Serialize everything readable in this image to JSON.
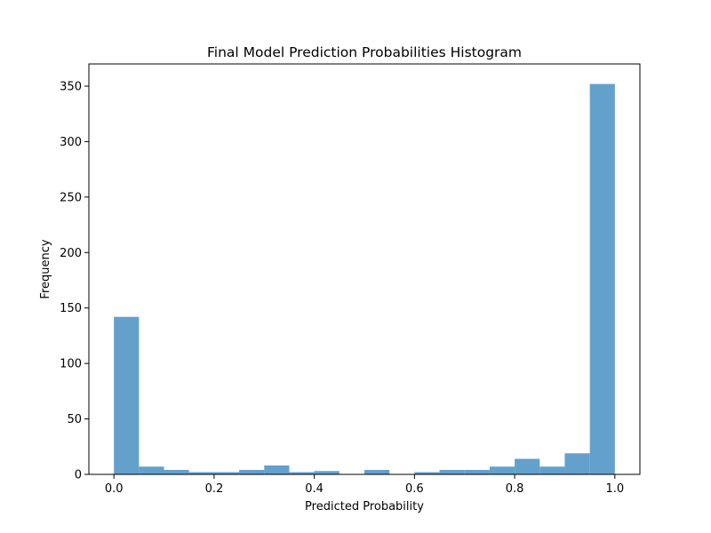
{
  "chart_data": {
    "type": "bar",
    "subtype": "histogram",
    "title": "Final Model Prediction Probabilities Histogram",
    "xlabel": "Predicted Probability",
    "ylabel": "Frequency",
    "xlim": [
      -0.05,
      1.05
    ],
    "ylim": [
      0,
      370
    ],
    "xticks": [
      0.0,
      0.2,
      0.4,
      0.6,
      0.8,
      1.0
    ],
    "xtick_labels": [
      "0.0",
      "0.2",
      "0.4",
      "0.6",
      "0.8",
      "1.0"
    ],
    "yticks": [
      0,
      50,
      100,
      150,
      200,
      250,
      300,
      350
    ],
    "ytick_labels": [
      "0",
      "50",
      "100",
      "150",
      "200",
      "250",
      "300",
      "350"
    ],
    "bin_edges": [
      0.0,
      0.05,
      0.1,
      0.15,
      0.2,
      0.25,
      0.3,
      0.35,
      0.4,
      0.45,
      0.5,
      0.55,
      0.6,
      0.65,
      0.7,
      0.75,
      0.8,
      0.85,
      0.9,
      0.95,
      1.0
    ],
    "values": [
      142,
      7,
      4,
      2,
      2,
      4,
      8,
      2,
      3,
      0,
      4,
      0,
      2,
      4,
      4,
      7,
      14,
      7,
      19,
      352
    ],
    "bar_color": "#5b9bc9",
    "bar_alpha": 0.95,
    "grid": false,
    "legend": "none"
  }
}
